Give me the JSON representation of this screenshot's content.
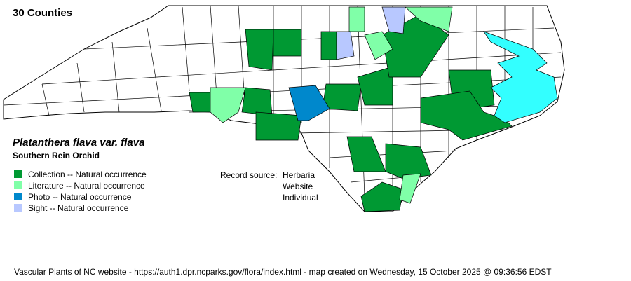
{
  "title": "30 Counties",
  "species": {
    "scientific": "Platanthera flava var. flava",
    "common": "Southern Rein Orchid"
  },
  "legend": [
    {
      "label": "Collection -- Natural occurrence",
      "color": "#009933"
    },
    {
      "label": "Literature -- Natural occurrence",
      "color": "#80ffa8"
    },
    {
      "label": "Photo -- Natural occurrence",
      "color": "#0088cc"
    },
    {
      "label": "Sight -- Natural occurrence",
      "color": "#b8c8ff"
    }
  ],
  "record_source": {
    "label": "Record source:",
    "values": [
      "Herbaria",
      "Website",
      "Individual"
    ]
  },
  "water_color": "#33ffff",
  "footer": "Vascular Plants of NC website - https://auth1.dpr.ncparks.gov/flora/index.html - map created on Wednesday, 15 October 2025 @ 09:36:56 EDST"
}
